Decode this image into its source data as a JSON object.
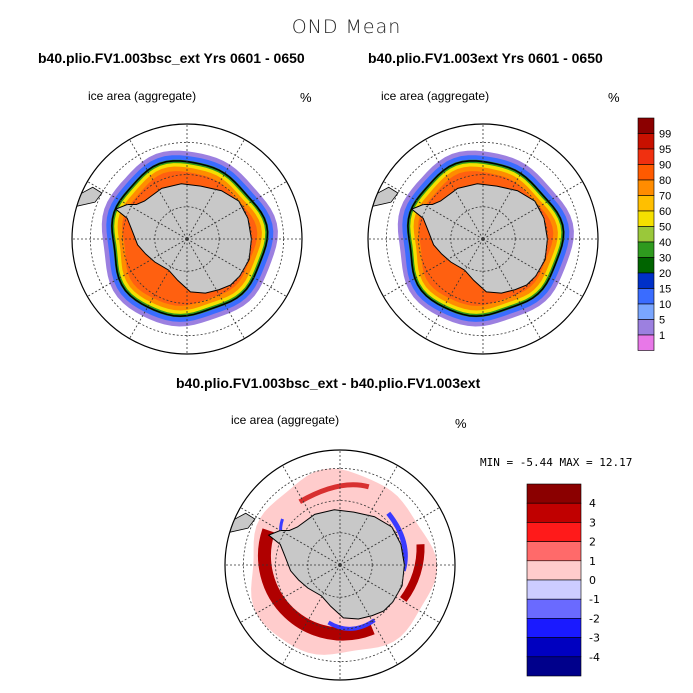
{
  "title": "OND Mean",
  "panels": [
    {
      "title": "b40.plio.FV1.003bsc_ext  Yrs 0601 - 0650",
      "variable": "ice area  (aggregate)",
      "unit": "%"
    },
    {
      "title": "b40.plio.FV1.003ext  Yrs 0601 - 0650",
      "variable": "ice area  (aggregate)",
      "unit": "%"
    }
  ],
  "difference": {
    "title": "b40.plio.FV1.003bsc_ext - b40.plio.FV1.003ext",
    "variable": "ice area  (aggregate)",
    "unit": "%",
    "min_label": "MIN =",
    "min_value": "-5.44",
    "max_label": "MAX =",
    "max_value": "12.17"
  },
  "colorbar": {
    "labels": [
      "99",
      "95",
      "90",
      "80",
      "70",
      "60",
      "50",
      "40",
      "30",
      "20",
      "15",
      "10",
      "5",
      "1"
    ],
    "colors": [
      "#8b0000",
      "#c81000",
      "#f03010",
      "#ff5a00",
      "#ff8c00",
      "#ffbf00",
      "#f5e000",
      "#9ac83a",
      "#2e9a1e",
      "#006400",
      "#0030c8",
      "#3a6cff",
      "#7aa6ff",
      "#9c80e0",
      "#e878e8"
    ]
  },
  "diff_colorbar": {
    "labels": [
      "4",
      "3",
      "2",
      "1",
      "0",
      "-1",
      "-2",
      "-3",
      "-4"
    ],
    "colors": [
      "#8b0000",
      "#c00000",
      "#ff1a1a",
      "#ff6a6a",
      "#ffcccc",
      "#ccccff",
      "#6a6aff",
      "#1a1aff",
      "#0000c0",
      "#00008b"
    ]
  },
  "map_colors": {
    "land": "#c8c8c8",
    "outer_band": "#9c80e0",
    "band_blue": "#3a6cff",
    "band_green": "#2e9a1e",
    "band_yellow": "#f5e000",
    "band_orange": "#ff8c00",
    "interior": "#ff6010",
    "diff_positive": "#b00000",
    "diff_light": "#ffcccc",
    "diff_negative": "#3a3aff"
  }
}
